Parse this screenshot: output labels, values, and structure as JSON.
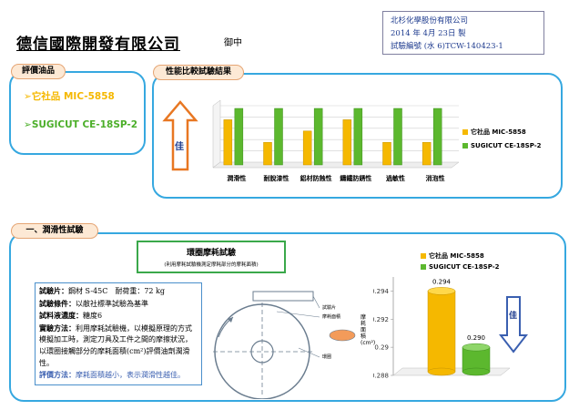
{
  "header": {
    "company": "德信國際開發有限公司",
    "recipient": "御中",
    "issuer_lines": [
      "北杉化學股份有限公司",
      "2014 年 4月 23日 製",
      "試驗編號 (水 6)TCW-140423-1"
    ]
  },
  "products_section": {
    "title": "評價油品",
    "items": [
      {
        "marker": "➢",
        "label": "它社品 MIC-5858",
        "color": "#f5b800"
      },
      {
        "marker": "➢",
        "label": "SUGICUT CE-18SP-2",
        "color": "#4caf2a"
      }
    ]
  },
  "comparison_section": {
    "title": "性能比較試驗結果",
    "better_label": "佳"
  },
  "lubricity_section": {
    "title": "一、潤滑性試驗",
    "test_title": "環圈摩耗試驗",
    "test_subtitle": "(利用摩耗試驗機測定摩耗部分的摩耗面積)",
    "conditions": [
      {
        "label": "試驗片：",
        "text": "鋼材 S-45C　耐荷重：72 kg"
      },
      {
        "label": "試驗條件：",
        "text": "以敝社標準試驗為基準"
      },
      {
        "label": "試料液濃度：",
        "text": "糖度6"
      },
      {
        "label": "實驗方法：",
        "text": "利用摩耗試驗機，以模擬原理的方式模擬加工時，測定刀具及工件之間的摩擦狀況，以環圈接觸部分的摩耗面積(cm²)評價油劑潤滑性。"
      }
    ],
    "evaluation_label": "評價方法：",
    "evaluation_text": "摩耗面積越小，表示潤滑性越佳。",
    "diagram_labels": {
      "specimen": "試驗片",
      "wear_area": "摩耗面積",
      "ring": "環圈"
    },
    "better_label": "佳"
  },
  "colors": {
    "series1": "#f5b800",
    "series2": "#5cb82e",
    "frame": "#36a8e0",
    "arrow": "#e87722"
  },
  "chart_data": [
    {
      "type": "bar",
      "categories": [
        "潤滑性",
        "耐脫漆性",
        "鋁材防蝕性",
        "鑄鐵防銹性",
        "過敏性",
        "消泡性"
      ],
      "series": [
        {
          "name": "它社品 MIC-5858",
          "values": [
            4,
            2,
            3,
            4,
            2,
            2
          ]
        },
        {
          "name": "SUGICUT CE-18SP-2",
          "values": [
            5,
            5,
            5,
            5,
            5,
            5
          ]
        }
      ],
      "ylim": [
        0,
        5
      ],
      "grid": true,
      "legend": "right"
    },
    {
      "type": "bar",
      "categories": [
        ""
      ],
      "series": [
        {
          "name": "它社品 MIC-5858",
          "values": [
            0.294
          ]
        },
        {
          "name": "SUGICUT CE-18SP-2",
          "values": [
            0.29
          ]
        }
      ],
      "ylabel": "摩耗面積(cm²)",
      "yticks": [
        0.288,
        0.29,
        0.292,
        0.294
      ],
      "ylim": [
        0.288,
        0.295
      ],
      "data_labels": [
        "0.294",
        "0.290"
      ],
      "legend": "top"
    }
  ]
}
